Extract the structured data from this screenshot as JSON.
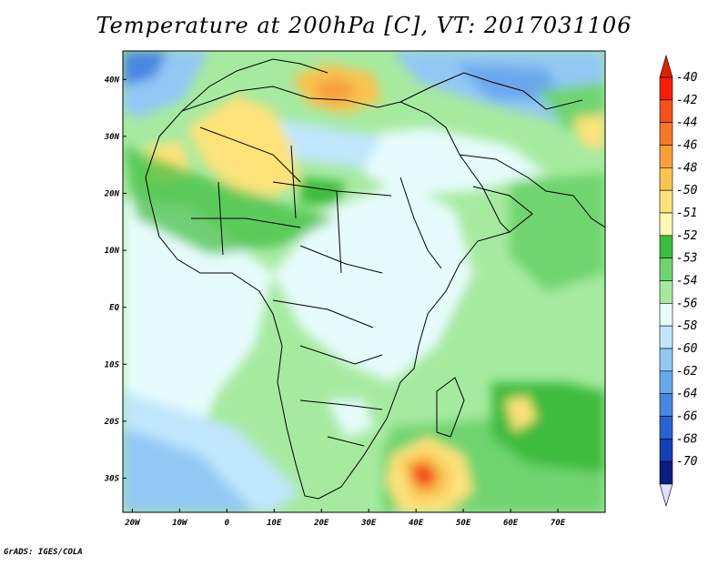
{
  "title": "Temperature at 200hPa [C], VT: 2017031106",
  "footer": "GrADS: IGES/COLA",
  "map": {
    "lon_range": [
      -22,
      80
    ],
    "lat_range": [
      -36,
      45
    ],
    "x_ticks": [
      "20W",
      "10W",
      "0",
      "10E",
      "20E",
      "30E",
      "40E",
      "50E",
      "60E",
      "70E"
    ],
    "y_ticks": [
      "40N",
      "30N",
      "20N",
      "10N",
      "EQ",
      "10S",
      "20S",
      "30S"
    ]
  },
  "colorbar": {
    "labels": [
      "-40",
      "-42",
      "-44",
      "-46",
      "-48",
      "-50",
      "-51",
      "-52",
      "-53",
      "-54",
      "-56",
      "-58",
      "-60",
      "-62",
      "-64",
      "-66",
      "-68",
      "-70"
    ],
    "colors": [
      "#f41e0a",
      "#f5501e",
      "#f6782a",
      "#f7a03c",
      "#f9c450",
      "#fde27a",
      "#fff7b4",
      "#3cbc3c",
      "#6fd46f",
      "#a6eaa0",
      "#e6fcfc",
      "#bfe6fc",
      "#93c8f5",
      "#6aa7ec",
      "#4986e0",
      "#2a63d0",
      "#1440b4",
      "#0a1e82"
    ],
    "top_arrow_color": "#dd2200",
    "bottom_arrow_color": "#e0e0ff"
  }
}
